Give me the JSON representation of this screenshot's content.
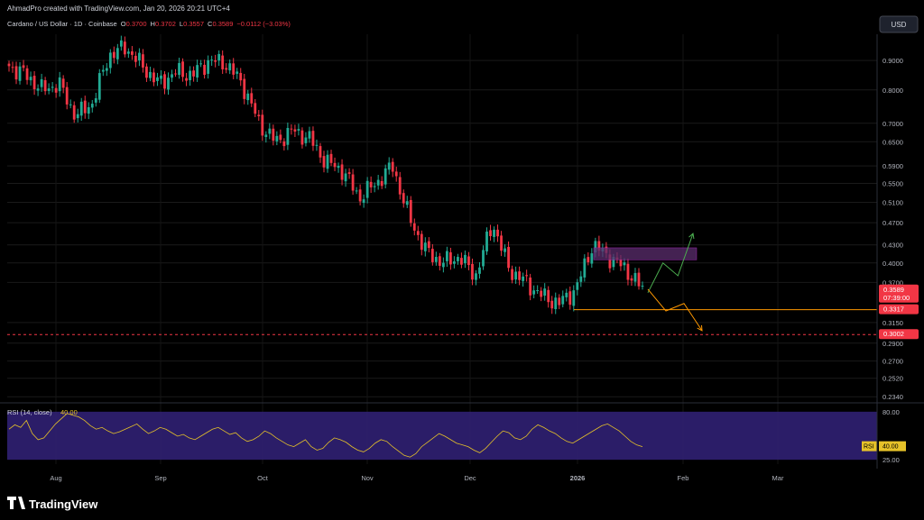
{
  "header": {
    "credit": "AhmadPro created with TradingView.com, Jan 20, 2026 20:21 UTC+4",
    "symbol": "Cardano / US Dollar · 1D · Coinbase",
    "open_label": "O",
    "open": "0.3700",
    "high_label": "H",
    "high": "0.3702",
    "low_label": "L",
    "low": "0.3557",
    "close_label": "C",
    "close": "0.3589",
    "change": "−0.0112 (−3.03%)",
    "currency": "USD"
  },
  "footer": {
    "brand": "TradingView"
  },
  "chart_data": [
    {
      "type": "candlestick",
      "title": "Cardano / US Dollar · 1D · Coinbase",
      "y_scale": "log",
      "ylim": [
        0.23,
        1.0
      ],
      "y_ticks": [
        "0.9000",
        "0.8000",
        "0.7000",
        "0.6500",
        "0.5900",
        "0.5500",
        "0.5100",
        "0.4700",
        "0.4300",
        "0.4000",
        "0.3700",
        "0.3150",
        "0.2900",
        "0.2700",
        "0.2520",
        "0.2340"
      ],
      "x_ticks": [
        "Aug",
        "Sep",
        "Oct",
        "Nov",
        "Dec",
        "2026",
        "Feb",
        "Mar"
      ],
      "grid": true,
      "colors": {
        "up": "#22ab94",
        "down": "#f23645",
        "bg": "#000000"
      },
      "price_labels": [
        {
          "value": 0.3589,
          "text": "0.3589",
          "sub": "07:39:00",
          "color": "#f23645"
        },
        {
          "value": 0.3317,
          "text": "0.3317",
          "color": "#f23645"
        },
        {
          "value": 0.3002,
          "text": "0.3002",
          "color": "#f23645"
        }
      ],
      "horizontal_lines": [
        {
          "value": 0.3317,
          "style": "solid",
          "color": "#ff9800"
        },
        {
          "value": 0.3002,
          "style": "dashed",
          "color": "#f23645"
        }
      ],
      "zone": {
        "y_low": 0.405,
        "y_high": 0.425,
        "color": "#5b2d6e"
      },
      "projections": [
        {
          "color": "#4caf50",
          "points": [
            [
              0.355,
              0
            ],
            [
              0.4,
              1
            ],
            [
              0.38,
              2
            ],
            [
              0.45,
              3
            ]
          ]
        },
        {
          "color": "#ff9800",
          "points": [
            [
              0.36,
              0
            ],
            [
              0.33,
              1
            ],
            [
              0.34,
              2
            ],
            [
              0.305,
              3
            ]
          ]
        }
      ],
      "key_closes": [
        0.88,
        0.85,
        0.8,
        0.82,
        0.72,
        0.76,
        0.92,
        0.95,
        0.88,
        0.82,
        0.86,
        0.85,
        0.9,
        0.89,
        0.82,
        0.7,
        0.65,
        0.68,
        0.66,
        0.6,
        0.58,
        0.52,
        0.55,
        0.59,
        0.48,
        0.42,
        0.4,
        0.41,
        0.38,
        0.47,
        0.39,
        0.37,
        0.35,
        0.34,
        0.36,
        0.43,
        0.41,
        0.39,
        0.36
      ]
    },
    {
      "type": "line",
      "title": "RSI (14, close)",
      "value": "40.00",
      "label": "RSI",
      "ylim": [
        20,
        85
      ],
      "band": [
        25,
        80
      ],
      "y_ticks": [
        "80.00",
        "25.00"
      ],
      "series": [
        {
          "name": "RSI",
          "color": "#e6c229",
          "values": [
            60,
            65,
            62,
            70,
            55,
            48,
            50,
            58,
            66,
            72,
            78,
            76,
            74,
            70,
            64,
            60,
            62,
            58,
            55,
            57,
            60,
            63,
            66,
            60,
            55,
            58,
            62,
            60,
            56,
            52,
            54,
            50,
            48,
            52,
            56,
            60,
            62,
            58,
            54,
            56,
            50,
            46,
            48,
            52,
            58,
            55,
            50,
            46,
            42,
            40,
            44,
            48,
            40,
            36,
            38,
            45,
            50,
            48,
            45,
            40,
            36,
            34,
            38,
            44,
            48,
            46,
            40,
            35,
            30,
            28,
            32,
            40,
            45,
            50,
            55,
            52,
            48,
            44,
            42,
            40,
            36,
            33,
            38,
            45,
            52,
            58,
            56,
            50,
            48,
            52,
            60,
            65,
            62,
            58,
            55,
            50,
            46,
            44,
            48,
            52,
            56,
            60,
            64,
            66,
            62,
            58,
            52,
            46,
            42,
            40
          ]
        }
      ]
    }
  ]
}
